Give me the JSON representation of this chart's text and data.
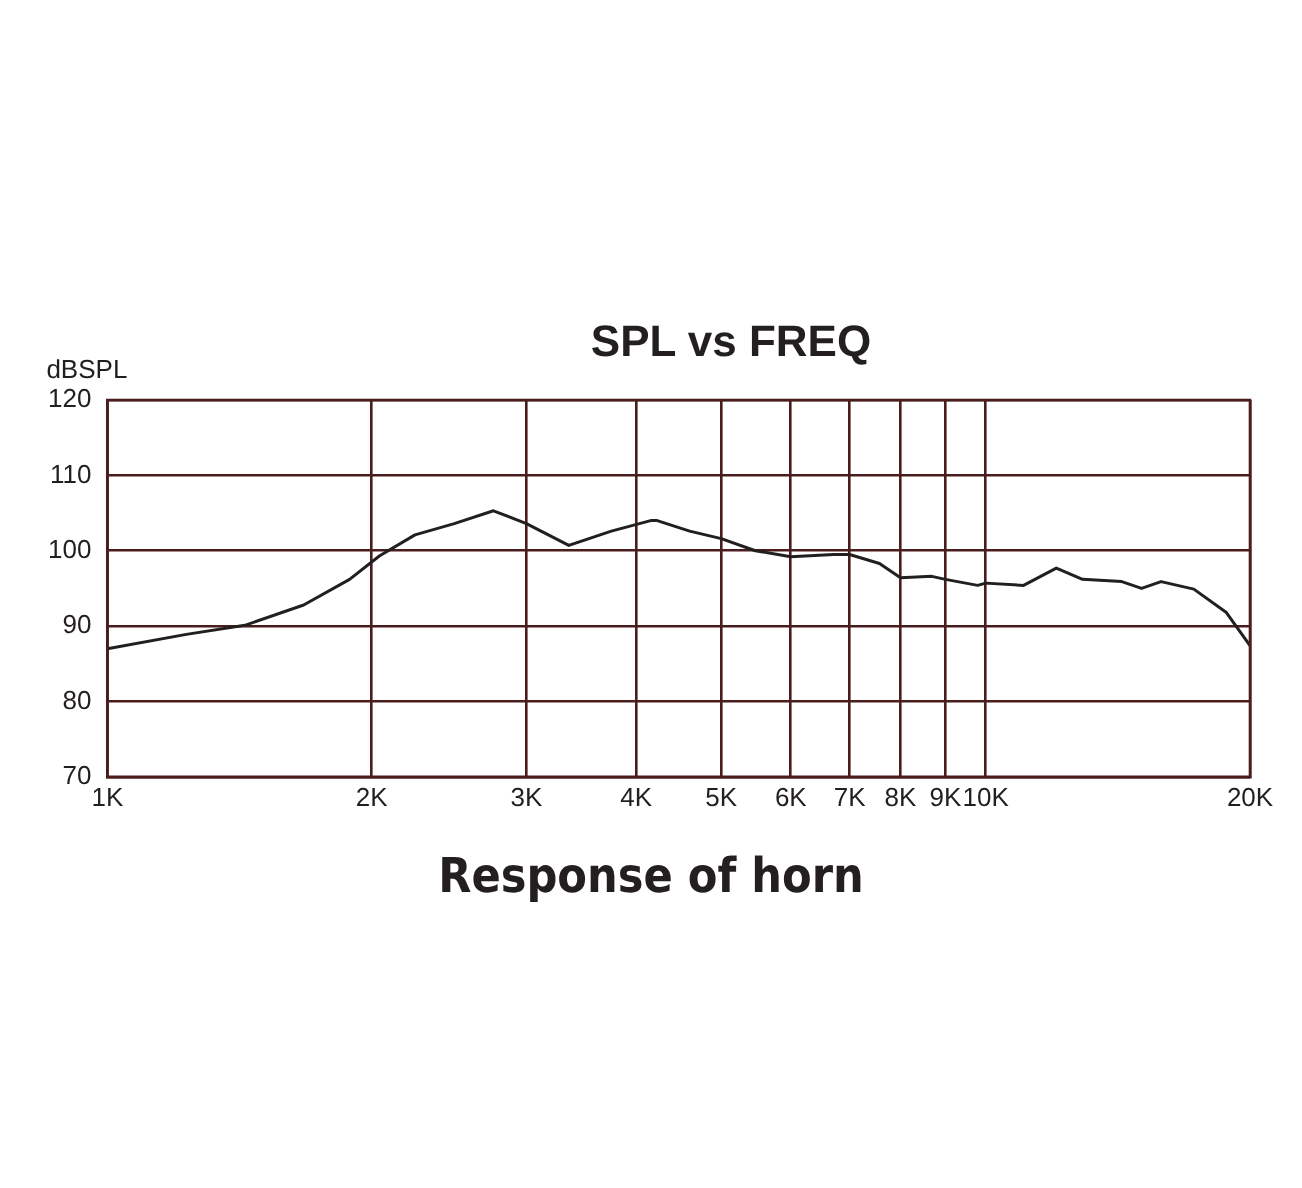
{
  "chart_data": {
    "type": "line",
    "title": "SPL vs FREQ",
    "ylabel": "dBSPL",
    "annotations": [
      "Response of horn"
    ],
    "log": "x",
    "grid": true,
    "legend": false,
    "marker": "none",
    "line_style": "solid",
    "x": [
      1000,
      1230,
      1434,
      1673,
      1887,
      2040,
      2240,
      2483,
      2752,
      3000,
      3353,
      3748,
      4155,
      4227,
      4603,
      5000,
      5468,
      6000,
      6714,
      7000,
      7571,
      8000,
      8686,
      9000,
      9795,
      10000,
      11046,
      12037,
      12894,
      14290,
      15050,
      15840,
      17260,
      18800,
      20000
    ],
    "series": [
      {
        "color": "#231f20",
        "values": [
          87.0,
          88.9,
          90.1,
          92.8,
          96.2,
          99.3,
          102.1,
          103.6,
          105.3,
          103.6,
          100.7,
          102.6,
          104.0,
          104.0,
          102.6,
          101.6,
          100.0,
          99.2,
          99.5,
          99.5,
          98.3,
          96.4,
          96.6,
          96.2,
          95.4,
          95.7,
          95.4,
          97.7,
          96.2,
          95.9,
          95.0,
          95.9,
          94.9,
          91.8,
          87.4
        ]
      }
    ],
    "xlim": [
      1000,
      20000
    ],
    "xticks": [
      {
        "value": 1000,
        "label": "1K"
      },
      {
        "value": 2000,
        "label": "2K"
      },
      {
        "value": 3000,
        "label": "3K"
      },
      {
        "value": 4000,
        "label": "4K"
      },
      {
        "value": 5000,
        "label": "5K"
      },
      {
        "value": 6000,
        "label": "6K"
      },
      {
        "value": 7000,
        "label": "7K"
      },
      {
        "value": 8000,
        "label": "8K"
      },
      {
        "value": 9000,
        "label": "9K"
      },
      {
        "value": 10000,
        "label": "10K"
      },
      {
        "value": 20000,
        "label": "20K"
      }
    ],
    "ylim": [
      70,
      120
    ],
    "yticks": [
      70,
      80,
      90,
      100,
      110,
      120
    ]
  }
}
